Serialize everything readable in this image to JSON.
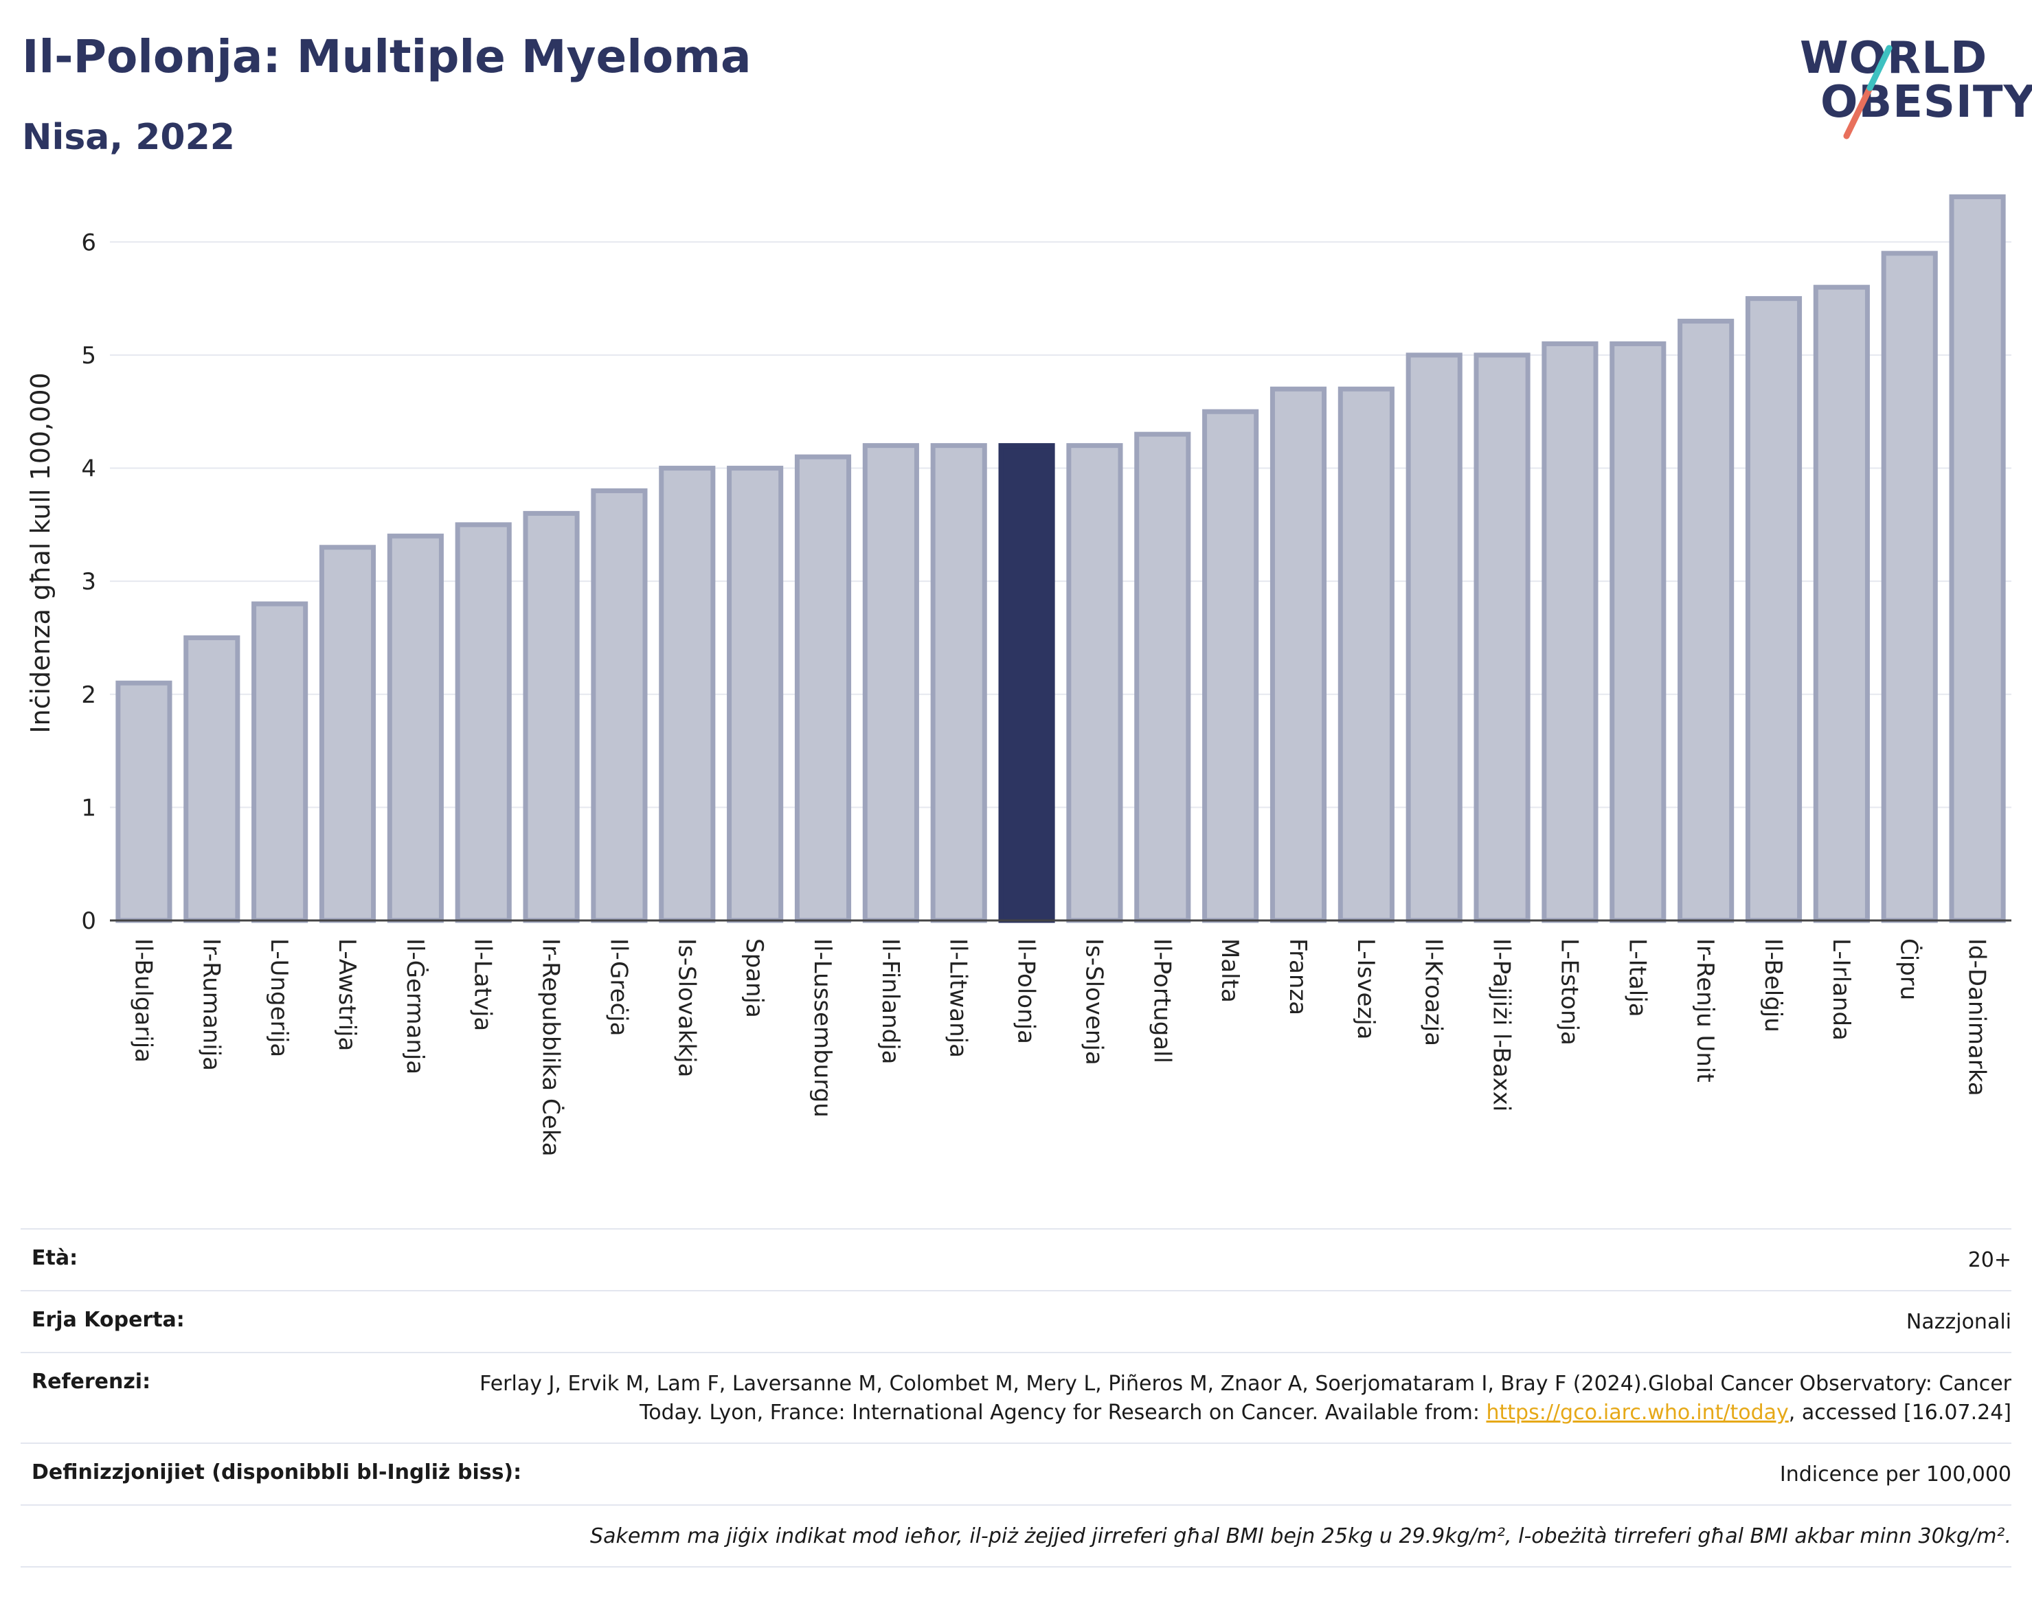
{
  "header": {
    "title": "Il-Polonja: Multiple Myeloma",
    "subtitle": "Nisa, 2022",
    "logo_line1": "WORLD",
    "logo_line2": "OBESITY"
  },
  "colors": {
    "bar": "#c0c4d2",
    "bar_stroke": "#9ea4bc",
    "highlight": "#2d3561",
    "grid": "#e6e8ef",
    "axis": "#444444"
  },
  "chart_data": {
    "type": "bar",
    "ylabel": "Inċidenza għal kull 100,000",
    "ylim": [
      0,
      6.5
    ],
    "yticks": [
      0,
      1,
      2,
      3,
      4,
      5,
      6
    ],
    "highlight": "Il-Polonja",
    "categories": [
      "Il-Bulgarija",
      "Ir-Rumanija",
      "L-Ungerija",
      "L-Awstrija",
      "Il-Ġermanja",
      "Il-Latvja",
      "Ir-Repubblika Ċeka",
      "Il-Greċja",
      "Is-Slovakkja",
      "Spanja",
      "Il-Lussemburgu",
      "Il-Finlandja",
      "Il-Litwanja",
      "Il-Polonja",
      "Is-Slovenja",
      "Il-Portugall",
      "Malta",
      "Franza",
      "L-Isvezja",
      "Il-Kroazja",
      "Il-Pajjiżi l-Baxxi",
      "L-Estonja",
      "L-Italja",
      "Ir-Renju Unit",
      "Il-Belġju",
      "L-Irlanda",
      "Ċipru",
      "Id-Danimarka"
    ],
    "values": [
      2.1,
      2.5,
      2.8,
      3.3,
      3.4,
      3.5,
      3.6,
      3.8,
      4.0,
      4.0,
      4.1,
      4.2,
      4.2,
      4.2,
      4.2,
      4.3,
      4.5,
      4.7,
      4.7,
      5.0,
      5.0,
      5.1,
      5.1,
      5.3,
      5.5,
      5.6,
      5.9,
      6.4
    ],
    "grid": true,
    "legend": "none"
  },
  "footer": {
    "rows": [
      {
        "key": "Età:",
        "value": "20+"
      },
      {
        "key": "Erja Koperta:",
        "value": "Nazzjonali"
      },
      {
        "key": "Referenzi:",
        "value_before": "Ferlay J, Ervik M, Lam F, Laversanne M, Colombet M, Mery L, Piñeros M, Znaor A, Soerjomataram I, Bray F (2024).Global Cancer Observatory: Cancer Today. Lyon, France: International Agency for Research on Cancer. Available from: ",
        "link": "https://gco.iarc.who.int/today",
        "value_after": ", accessed [16.07.24]"
      },
      {
        "key": "Definizzjonijiet (disponibbli bl-Ingliż biss):",
        "value": "Indicence per 100,000"
      }
    ],
    "note": "Sakemm ma jiġix indikat mod ieħor, il-piż żejjed jirreferi għal BMI bejn 25kg u 29.9kg/m², l-obeżità tirreferi għal BMI akbar minn 30kg/m²."
  }
}
